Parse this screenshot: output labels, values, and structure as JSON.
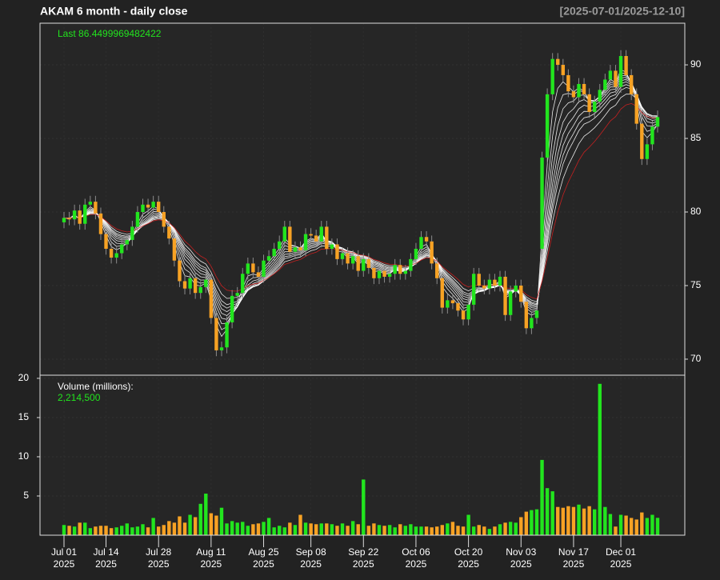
{
  "chart_data": {
    "type": "candlestick",
    "title": "AKAM  6 month - daily close",
    "date_range": "[2025-07-01/2025-12-10]",
    "last_label": "Last 86.4499969482422",
    "x": [
      "2025-07-01",
      "2025-07-02",
      "2025-07-03",
      "2025-07-07",
      "2025-07-08",
      "2025-07-09",
      "2025-07-10",
      "2025-07-11",
      "2025-07-14",
      "2025-07-15",
      "2025-07-16",
      "2025-07-17",
      "2025-07-18",
      "2025-07-21",
      "2025-07-22",
      "2025-07-23",
      "2025-07-24",
      "2025-07-25",
      "2025-07-28",
      "2025-07-29",
      "2025-07-30",
      "2025-07-31",
      "2025-08-01",
      "2025-08-04",
      "2025-08-05",
      "2025-08-06",
      "2025-08-07",
      "2025-08-08",
      "2025-08-11",
      "2025-08-12",
      "2025-08-13",
      "2025-08-14",
      "2025-08-15",
      "2025-08-18",
      "2025-08-19",
      "2025-08-20",
      "2025-08-21",
      "2025-08-22",
      "2025-08-25",
      "2025-08-26",
      "2025-08-27",
      "2025-08-28",
      "2025-08-29",
      "2025-09-02",
      "2025-09-03",
      "2025-09-04",
      "2025-09-05",
      "2025-09-08",
      "2025-09-09",
      "2025-09-10",
      "2025-09-11",
      "2025-09-12",
      "2025-09-15",
      "2025-09-16",
      "2025-09-17",
      "2025-09-18",
      "2025-09-19",
      "2025-09-22",
      "2025-09-23",
      "2025-09-24",
      "2025-09-25",
      "2025-09-26",
      "2025-09-29",
      "2025-09-30",
      "2025-10-01",
      "2025-10-02",
      "2025-10-03",
      "2025-10-06",
      "2025-10-07",
      "2025-10-08",
      "2025-10-09",
      "2025-10-10",
      "2025-10-13",
      "2025-10-14",
      "2025-10-15",
      "2025-10-16",
      "2025-10-17",
      "2025-10-20",
      "2025-10-21",
      "2025-10-22",
      "2025-10-23",
      "2025-10-24",
      "2025-10-27",
      "2025-10-28",
      "2025-10-29",
      "2025-10-30",
      "2025-10-31",
      "2025-11-03",
      "2025-11-04",
      "2025-11-05",
      "2025-11-06",
      "2025-11-07",
      "2025-11-10",
      "2025-11-11",
      "2025-11-12",
      "2025-11-13",
      "2025-11-14",
      "2025-11-17",
      "2025-11-18",
      "2025-11-19",
      "2025-11-20",
      "2025-11-21",
      "2025-11-24",
      "2025-11-25",
      "2025-11-26",
      "2025-11-28",
      "2025-12-01",
      "2025-12-02",
      "2025-12-03",
      "2025-12-04",
      "2025-12-05",
      "2025-12-08",
      "2025-12-09",
      "2025-12-10"
    ],
    "open": [
      79.3,
      79.6,
      79.5,
      80.1,
      79.2,
      80.5,
      80.7,
      79.9,
      78.5,
      77.5,
      76.9,
      77.2,
      77.8,
      78.1,
      79.0,
      80.0,
      80.5,
      80.3,
      80.7,
      80.0,
      79.0,
      78.2,
      76.7,
      75.3,
      74.8,
      75.5,
      74.5,
      74.9,
      75.4,
      72.8,
      70.6,
      70.8,
      72.5,
      74.3,
      74.5,
      75.8,
      76.5,
      75.9,
      75.6,
      76.7,
      77.0,
      77.5,
      78.0,
      79.0,
      77.3,
      77.6,
      77.4,
      78.5,
      78.4,
      78.0,
      79.0,
      77.5,
      77.8,
      76.8,
      77.2,
      76.5,
      77.0,
      76.0,
      76.8,
      76.2,
      75.5,
      76.0,
      75.6,
      75.8,
      76.4,
      75.8,
      76.0,
      76.8,
      77.5,
      78.3,
      78.0,
      76.5,
      75.5,
      73.5,
      74.0,
      73.8,
      73.3,
      72.7,
      73.7,
      75.8,
      75.0,
      74.8,
      75.4,
      75.0,
      75.6,
      73.0,
      74.6,
      75.0,
      73.9,
      72.1,
      72.8,
      77.5,
      83.7,
      88.0,
      90.4,
      90.0,
      89.3,
      88.2,
      87.8,
      88.7,
      88.0,
      86.8,
      87.5,
      88.3,
      89.0,
      89.6,
      88.5,
      90.6,
      89.3,
      88.0,
      86.0,
      83.6,
      84.6,
      85.8
    ],
    "high": [
      80.0,
      80.0,
      80.5,
      80.5,
      80.9,
      81.1,
      81.1,
      80.3,
      78.9,
      77.9,
      77.6,
      78.2,
      78.5,
      79.4,
      80.4,
      80.9,
      80.9,
      81.1,
      81.1,
      80.4,
      79.4,
      78.6,
      77.1,
      75.7,
      75.9,
      75.9,
      75.3,
      75.8,
      75.8,
      73.2,
      71.2,
      72.9,
      74.7,
      74.9,
      76.2,
      76.9,
      76.9,
      76.3,
      77.1,
      77.4,
      77.9,
      78.4,
      79.4,
      79.4,
      78.0,
      78.0,
      78.9,
      78.9,
      78.8,
      79.4,
      79.4,
      78.2,
      78.2,
      77.6,
      77.6,
      77.4,
      77.4,
      77.2,
      77.2,
      76.6,
      76.4,
      76.4,
      76.2,
      76.8,
      76.8,
      76.4,
      77.2,
      77.9,
      78.7,
      78.7,
      78.4,
      76.9,
      75.9,
      74.4,
      74.4,
      74.2,
      73.7,
      74.1,
      76.2,
      76.2,
      75.4,
      75.8,
      75.8,
      76.0,
      76.0,
      75.0,
      75.4,
      75.4,
      74.3,
      73.2,
      73.7,
      84.1,
      88.4,
      90.8,
      90.8,
      90.4,
      89.7,
      88.6,
      89.1,
      89.1,
      88.4,
      87.9,
      88.7,
      89.4,
      90.0,
      90.0,
      91.0,
      91.0,
      89.7,
      88.4,
      86.4,
      85.0,
      86.2,
      86.9
    ],
    "low": [
      78.9,
      79.1,
      79.1,
      78.8,
      78.8,
      80.1,
      79.5,
      78.1,
      77.1,
      76.5,
      76.5,
      76.8,
      77.4,
      77.7,
      78.6,
      79.6,
      79.9,
      79.9,
      79.6,
      78.6,
      77.8,
      76.3,
      74.9,
      74.4,
      74.4,
      74.1,
      74.1,
      74.5,
      72.4,
      70.2,
      70.2,
      70.4,
      72.1,
      73.9,
      74.1,
      75.4,
      75.5,
      75.2,
      75.2,
      76.3,
      76.6,
      77.1,
      77.6,
      76.9,
      76.9,
      77.0,
      77.0,
      78.0,
      77.6,
      77.6,
      77.1,
      77.1,
      76.4,
      76.4,
      76.1,
      76.1,
      75.6,
      75.6,
      75.8,
      75.1,
      75.1,
      75.2,
      75.2,
      75.4,
      75.4,
      75.4,
      75.6,
      76.4,
      77.1,
      77.6,
      76.1,
      75.1,
      73.1,
      73.1,
      73.4,
      72.9,
      72.3,
      72.3,
      73.3,
      74.6,
      74.4,
      74.4,
      74.6,
      74.6,
      72.6,
      72.6,
      74.2,
      73.5,
      71.7,
      71.7,
      72.4,
      77.1,
      83.3,
      87.6,
      89.6,
      88.9,
      87.8,
      87.4,
      87.4,
      87.6,
      86.4,
      86.4,
      87.1,
      87.9,
      88.6,
      88.1,
      88.1,
      88.9,
      87.6,
      85.6,
      83.2,
      83.2,
      84.2,
      85.4
    ],
    "close": [
      79.6,
      79.5,
      80.1,
      79.2,
      80.5,
      80.7,
      79.9,
      78.5,
      77.5,
      76.9,
      77.2,
      77.8,
      78.1,
      79.0,
      80.0,
      80.5,
      80.3,
      80.7,
      80.0,
      79.0,
      78.2,
      76.7,
      75.3,
      74.8,
      75.5,
      74.5,
      74.9,
      75.4,
      72.8,
      70.6,
      70.8,
      72.5,
      74.3,
      74.5,
      75.8,
      76.5,
      75.9,
      75.6,
      76.7,
      77.0,
      77.5,
      78.0,
      79.0,
      77.3,
      77.6,
      77.4,
      78.5,
      78.4,
      78.0,
      79.0,
      77.5,
      77.8,
      76.8,
      77.2,
      76.5,
      77.0,
      76.0,
      76.8,
      76.2,
      75.5,
      76.0,
      75.6,
      75.8,
      76.4,
      75.8,
      76.0,
      76.8,
      77.5,
      78.3,
      78.0,
      76.5,
      75.5,
      73.5,
      74.0,
      73.8,
      73.3,
      72.7,
      73.7,
      75.8,
      75.0,
      74.8,
      75.4,
      75.0,
      75.6,
      73.0,
      74.6,
      75.0,
      73.9,
      72.1,
      72.8,
      73.3,
      83.7,
      88.0,
      90.4,
      90.0,
      89.3,
      88.2,
      87.8,
      88.7,
      88.0,
      86.8,
      87.5,
      88.3,
      89.0,
      89.6,
      88.5,
      90.6,
      89.3,
      88.0,
      86.0,
      83.6,
      84.6,
      85.8,
      86.4499969482422
    ],
    "volume": [
      1.3,
      1.2,
      1.1,
      1.6,
      1.6,
      0.9,
      1.1,
      1.2,
      1.2,
      0.9,
      1.0,
      1.2,
      1.5,
      1.0,
      1.1,
      1.4,
      1.0,
      2.2,
      1.1,
      1.3,
      1.8,
      1.6,
      2.4,
      1.6,
      2.6,
      2.3,
      4.0,
      5.3,
      2.8,
      2.5,
      3.5,
      1.5,
      1.8,
      1.6,
      1.7,
      1.2,
      1.4,
      1.5,
      1.7,
      2.2,
      1.0,
      1.2,
      1.0,
      1.6,
      1.3,
      2.6,
      1.6,
      1.5,
      1.4,
      1.5,
      1.5,
      1.4,
      1.2,
      1.5,
      1.2,
      1.8,
      1.4,
      7.1,
      1.2,
      1.5,
      1.3,
      1.2,
      1.3,
      1.0,
      1.4,
      1.2,
      1.4,
      1.1,
      1.1,
      1.1,
      1.0,
      1.1,
      1.3,
      1.5,
      1.7,
      1.2,
      1.1,
      2.6,
      1.1,
      1.3,
      1.1,
      0.8,
      1.1,
      1.4,
      1.6,
      1.7,
      1.6,
      2.3,
      3.0,
      3.2,
      3.3,
      9.6,
      6.0,
      5.6,
      3.6,
      3.5,
      3.7,
      3.6,
      3.9,
      3.4,
      3.7,
      3.3,
      19.3,
      3.6,
      2.7,
      1.1,
      2.6,
      2.5,
      2.2,
      2.0,
      2.9,
      2.2,
      2.6,
      2.2145
    ],
    "up_color": "#22e51e",
    "down_color": "#f7a224",
    "wick_color": "#8c8c8c",
    "ylim": [
      68.91,
      92.83
    ],
    "yticks": [
      70,
      75,
      80,
      85,
      90
    ],
    "grid": true,
    "ma_periods": [
      3,
      4,
      5,
      6,
      7,
      8,
      9,
      10,
      12,
      15
    ],
    "ma_color": "#ffffff",
    "ma_last_color": "#d62020",
    "xticks": [
      {
        "value": "2025-07-01",
        "label": "Jul 01",
        "sublabel": "2025"
      },
      {
        "value": "2025-07-14",
        "label": "Jul 14",
        "sublabel": "2025"
      },
      {
        "value": "2025-07-28",
        "label": "Jul 28",
        "sublabel": "2025"
      },
      {
        "value": "2025-08-11",
        "label": "Aug 11",
        "sublabel": "2025"
      },
      {
        "value": "2025-08-25",
        "label": "Aug 25",
        "sublabel": "2025"
      },
      {
        "value": "2025-09-08",
        "label": "Sep 08",
        "sublabel": "2025"
      },
      {
        "value": "2025-09-22",
        "label": "Sep 22",
        "sublabel": "2025"
      },
      {
        "value": "2025-10-06",
        "label": "Oct 06",
        "sublabel": "2025"
      },
      {
        "value": "2025-10-20",
        "label": "Oct 20",
        "sublabel": "2025"
      },
      {
        "value": "2025-11-03",
        "label": "Nov 03",
        "sublabel": "2025"
      },
      {
        "value": "2025-11-17",
        "label": "Nov 17",
        "sublabel": "2025"
      },
      {
        "value": "2025-12-01",
        "label": "Dec 01",
        "sublabel": "2025"
      }
    ],
    "volume_panel": {
      "label": "Volume (millions):",
      "last_label": "2,214,500",
      "ylim": [
        0,
        20.4
      ],
      "yticks": [
        5,
        10,
        15,
        20
      ]
    }
  }
}
